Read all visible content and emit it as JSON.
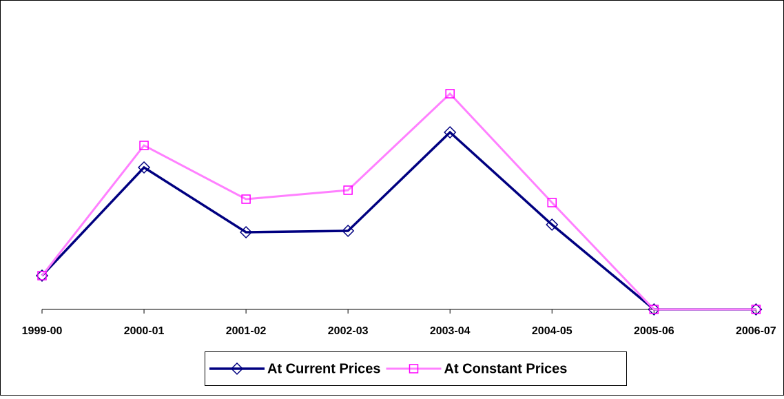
{
  "chart_data": {
    "type": "line",
    "categories": [
      "1999-00",
      "2000-01",
      "2001-02",
      "2002-03",
      "2003-04",
      "2004-05",
      "2005-06",
      "2006-07"
    ],
    "series": [
      {
        "name": "At Current Prices",
        "color": "#000080",
        "marker": "diamond",
        "values": [
          49,
          206,
          112,
          114,
          257,
          123,
          0,
          0
        ]
      },
      {
        "name": "At Constant Prices",
        "color": "#ff80ff",
        "marker_color": "#ff00ff",
        "marker": "square",
        "values": [
          49,
          238,
          160,
          173,
          313,
          155,
          0,
          0
        ]
      }
    ],
    "ylim": [
      0,
      430
    ],
    "grid": false,
    "legend": "bottom"
  }
}
